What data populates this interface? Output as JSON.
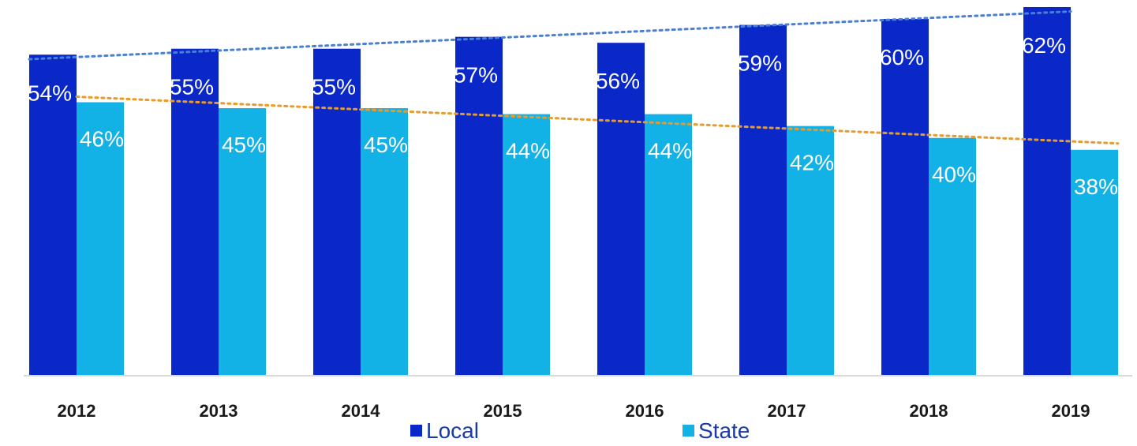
{
  "chart_data": {
    "type": "bar",
    "title": "",
    "xlabel": "",
    "ylabel": "",
    "categories": [
      "2012",
      "2013",
      "2014",
      "2015",
      "2016",
      "2017",
      "2018",
      "2019"
    ],
    "series": [
      {
        "name": "Local",
        "values": [
          54,
          55,
          55,
          57,
          56,
          59,
          60,
          62
        ],
        "labels": [
          "54%",
          "55%",
          "55%",
          "57%",
          "56%",
          "59%",
          "60%",
          "62%"
        ],
        "color": "#0a28c8",
        "trendline_color": "#4a7fd6"
      },
      {
        "name": "State",
        "values": [
          46,
          45,
          45,
          44,
          44,
          42,
          40,
          38
        ],
        "labels": [
          "46%",
          "45%",
          "45%",
          "44%",
          "44%",
          "42%",
          "40%",
          "38%"
        ],
        "color": "#12b2e6",
        "trendline_color": "#e89a2a"
      }
    ],
    "ylim": [
      0,
      62
    ],
    "grid": false,
    "trendlines": true,
    "legend_position": "bottom"
  }
}
